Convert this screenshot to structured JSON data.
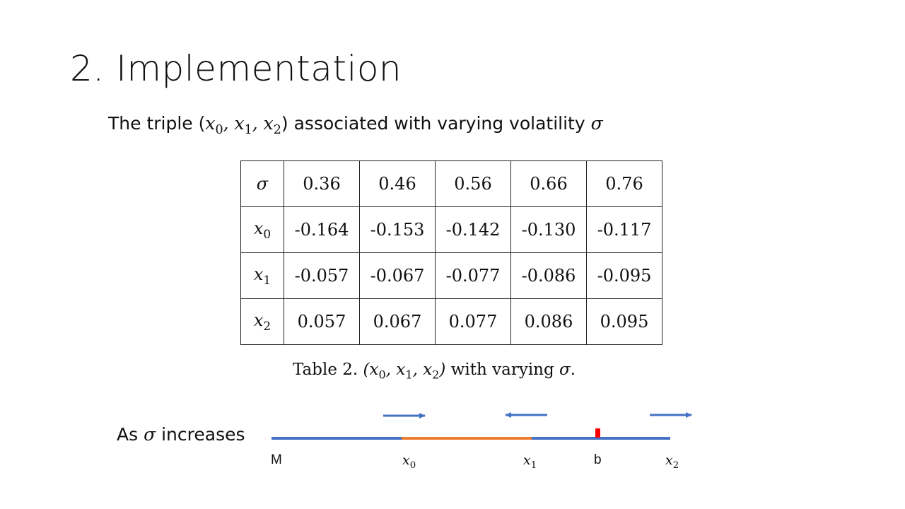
{
  "slide": {
    "title": "2. Implementation",
    "subtitle_prefix": "The triple (",
    "subtitle_suffix": ") associated with varying volatility ",
    "sigma_symbol": "σ"
  },
  "table": {
    "header": {
      "label": "σ",
      "values": [
        "0.36",
        "0.46",
        "0.56",
        "0.66",
        "0.76"
      ]
    },
    "rows": [
      {
        "var": "x",
        "sub": "0",
        "values": [
          "-0.164",
          "-0.153",
          "-0.142",
          "-0.130",
          "-0.117"
        ]
      },
      {
        "var": "x",
        "sub": "1",
        "values": [
          "-0.057",
          "-0.067",
          "-0.077",
          "-0.086",
          "-0.095"
        ]
      },
      {
        "var": "x",
        "sub": "2",
        "values": [
          "0.057",
          "0.067",
          "0.077",
          "0.086",
          "0.095"
        ]
      }
    ],
    "caption_prefix": "Table 2. ",
    "caption_suffix": " with varying "
  },
  "diagram": {
    "label_prefix": "As ",
    "label_suffix": " increases",
    "point_M": "M",
    "point_b": "b",
    "colors": {
      "line": "#4472c4",
      "segment": "#ed7d31",
      "marker": "#ff0000",
      "arrow": "#4472c4"
    }
  }
}
